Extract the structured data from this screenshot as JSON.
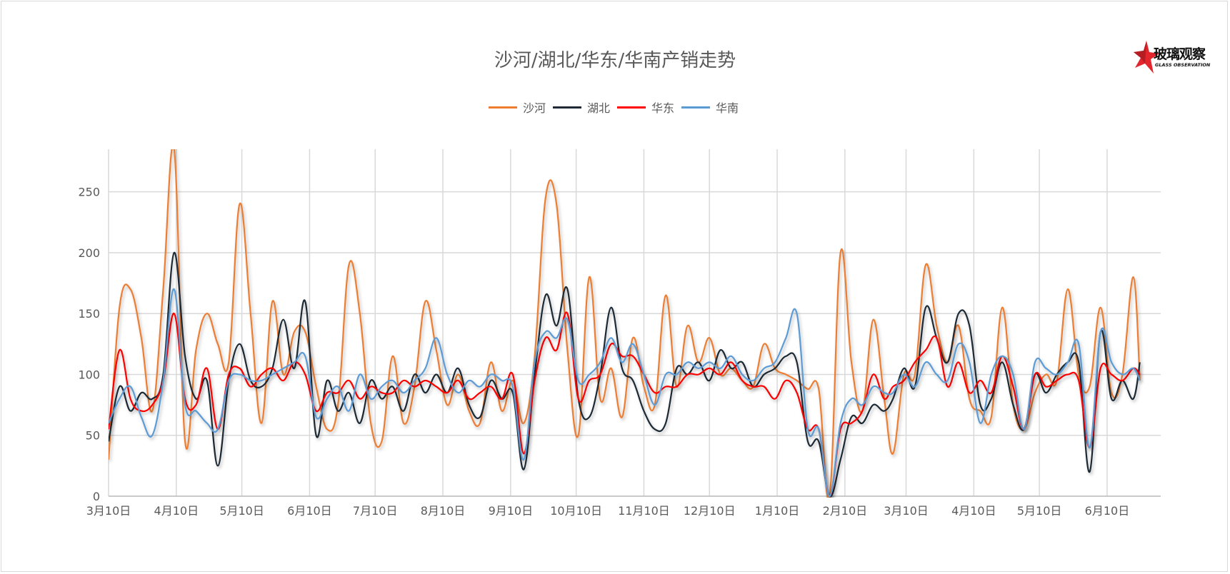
{
  "logo": {
    "text_cn": "玻璃观察",
    "text_en": "GLASS OBSERVATION"
  },
  "chart_data": {
    "type": "line",
    "title": "沙河/湖北/华东/华南产销走势",
    "legend_position": "top",
    "grid": true,
    "ylim": [
      0,
      285
    ],
    "yticks": [
      0,
      50,
      100,
      150,
      200,
      250
    ],
    "xticks": [
      "3月10日",
      "4月10日",
      "5月10日",
      "6月10日",
      "7月10日",
      "8月10日",
      "9月10日",
      "10月10日",
      "11月10日",
      "12月10日",
      "1月10日",
      "2月10日",
      "3月10日",
      "4月10日",
      "5月10日",
      "6月10日"
    ],
    "x": [
      "3月10日",
      "3月15日",
      "3月20日",
      "3月25日",
      "3月30日",
      "4月4日",
      "4月9日",
      "4月14日",
      "4月19日",
      "4月24日",
      "4月29日",
      "5月4日",
      "5月9日",
      "5月14日",
      "5月19日",
      "5月24日",
      "5月29日",
      "6月3日",
      "6月8日",
      "6月13日",
      "6月18日",
      "6月23日",
      "6月28日",
      "7月3日",
      "7月8日",
      "7月13日",
      "7月18日",
      "7月23日",
      "7月28日",
      "8月2日",
      "8月7日",
      "8月12日",
      "8月17日",
      "8月22日",
      "8月27日",
      "9月1日",
      "9月6日",
      "9月11日",
      "9月16日",
      "9月21日",
      "9月26日",
      "10月1日",
      "10月6日",
      "10月11日",
      "10月16日",
      "10月21日",
      "10月26日",
      "10月31日",
      "11月5日",
      "11月10日",
      "11月15日",
      "11月20日",
      "11月25日",
      "11月30日",
      "12月5日",
      "12月10日",
      "12月15日",
      "12月20日",
      "12月25日",
      "12月30日",
      "1月4日",
      "1月9日",
      "1月14日",
      "1月19日",
      "1月24日",
      "1月29日",
      "2月3日",
      "2月8日",
      "2月13日",
      "2月18日",
      "2月23日",
      "2月28日",
      "3月4日",
      "3月9日",
      "3月14日",
      "3月19日",
      "3月24日",
      "3月29日",
      "4月3日",
      "4月8日",
      "4月13日",
      "4月18日",
      "4月23日",
      "4月28日",
      "5月3日",
      "5月8日",
      "5月13日",
      "5月18日",
      "5月23日",
      "5月28日",
      "6月2日",
      "6月7日",
      "6月12日",
      "6月17日",
      "6月22日",
      "6月25日"
    ],
    "series": [
      {
        "name": "沙河",
        "color": "#ED7D31",
        "values": [
          30,
          155,
          170,
          130,
          70,
          170,
          285,
          45,
          120,
          150,
          125,
          110,
          240,
          150,
          60,
          160,
          100,
          135,
          135,
          90,
          55,
          75,
          190,
          150,
          60,
          45,
          115,
          60,
          90,
          160,
          120,
          75,
          100,
          70,
          60,
          110,
          70,
          95,
          60,
          115,
          245,
          240,
          120,
          50,
          180,
          80,
          105,
          65,
          130,
          90,
          75,
          165,
          90,
          140,
          110,
          130,
          100,
          105,
          95,
          90,
          125,
          105,
          100,
          95,
          88,
          88,
          0,
          200,
          110,
          70,
          145,
          80,
          35,
          100,
          100,
          190,
          140,
          110,
          140,
          80,
          70,
          65,
          155,
          75,
          55,
          85,
          100,
          95,
          170,
          100,
          90,
          155,
          85,
          100,
          180,
          95
        ]
      },
      {
        "name": "湖北",
        "color": "#1F2A36",
        "values": [
          45,
          90,
          70,
          85,
          80,
          100,
          200,
          115,
          80,
          95,
          25,
          95,
          125,
          95,
          90,
          105,
          145,
          105,
          160,
          50,
          95,
          70,
          85,
          60,
          95,
          80,
          90,
          70,
          100,
          85,
          100,
          85,
          105,
          75,
          65,
          95,
          80,
          85,
          22,
          100,
          165,
          140,
          170,
          80,
          65,
          100,
          155,
          105,
          95,
          70,
          55,
          60,
          105,
          100,
          110,
          95,
          120,
          105,
          110,
          90,
          100,
          105,
          115,
          110,
          45,
          45,
          0,
          30,
          65,
          60,
          75,
          70,
          80,
          105,
          90,
          155,
          130,
          110,
          150,
          140,
          75,
          80,
          110,
          75,
          55,
          100,
          85,
          100,
          110,
          110,
          20,
          135,
          80,
          95,
          80,
          110
        ]
      },
      {
        "name": "华东",
        "color": "#FF0000",
        "values": [
          55,
          120,
          80,
          70,
          75,
          95,
          150,
          80,
          75,
          105,
          55,
          100,
          105,
          90,
          100,
          105,
          95,
          110,
          100,
          70,
          85,
          85,
          95,
          80,
          90,
          85,
          85,
          95,
          90,
          95,
          90,
          85,
          95,
          80,
          85,
          90,
          80,
          100,
          35,
          95,
          130,
          120,
          150,
          80,
          95,
          100,
          125,
          115,
          115,
          100,
          85,
          90,
          90,
          100,
          100,
          105,
          100,
          110,
          95,
          90,
          90,
          80,
          95,
          85,
          55,
          55,
          0,
          55,
          60,
          70,
          100,
          80,
          90,
          95,
          110,
          120,
          130,
          90,
          110,
          85,
          95,
          85,
          115,
          90,
          55,
          100,
          90,
          95,
          100,
          95,
          40,
          105,
          100,
          95,
          105,
          100
        ]
      },
      {
        "name": "华南",
        "color": "#5B9BD5",
        "values": [
          60,
          80,
          90,
          65,
          50,
          95,
          170,
          75,
          70,
          60,
          55,
          95,
          100,
          95,
          95,
          100,
          105,
          110,
          115,
          65,
          80,
          90,
          70,
          100,
          80,
          90,
          95,
          85,
          95,
          105,
          130,
          100,
          85,
          95,
          90,
          100,
          95,
          90,
          30,
          110,
          135,
          130,
          145,
          95,
          100,
          110,
          130,
          110,
          125,
          100,
          75,
          100,
          100,
          110,
          105,
          110,
          105,
          115,
          100,
          95,
          105,
          110,
          130,
          150,
          55,
          55,
          0,
          60,
          80,
          75,
          90,
          85,
          85,
          100,
          90,
          110,
          100,
          95,
          125,
          110,
          60,
          100,
          115,
          100,
          55,
          110,
          105,
          100,
          110,
          125,
          40,
          135,
          110,
          100,
          105,
          95
        ]
      }
    ]
  }
}
